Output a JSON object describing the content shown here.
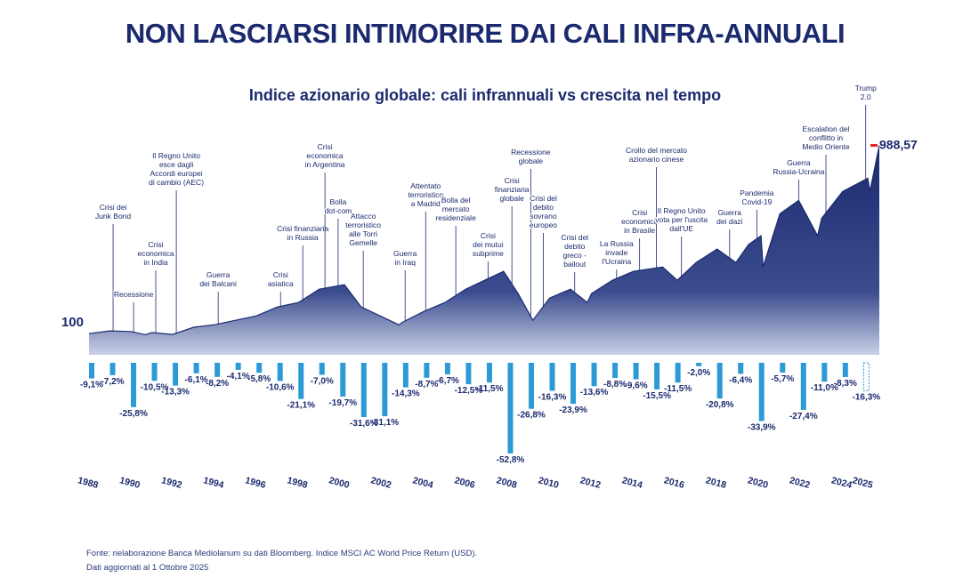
{
  "header": {
    "title": "NON LASCIARSI INTIMORIRE DAI CALI INFRA-ANNUALI"
  },
  "chart_data": [
    {
      "type": "area",
      "title": "Indice azionario globale: cali infrannuali vs crescita nel tempo",
      "color": "#1b2a6e",
      "x": [
        1988,
        1989,
        1990,
        1990.7,
        1991,
        1992,
        1993,
        1994,
        1995,
        1996,
        1997,
        1998,
        1999,
        2000.2,
        2001,
        2002.8,
        2003,
        2004,
        2005,
        2006,
        2007.8,
        2008.5,
        2009.2,
        2010,
        2011,
        2011.8,
        2012,
        2013,
        2014,
        2015.4,
        2016.1,
        2017,
        2018,
        2018.9,
        2019.5,
        2020.1,
        2020.2,
        2021,
        2021.9,
        2022.8,
        2023,
        2024,
        2025.2,
        2025.3,
        2025.75
      ],
      "values": [
        100,
        113,
        110,
        95,
        105,
        96,
        130,
        142,
        163,
        184,
        226,
        247,
        310,
        331,
        226,
        142,
        155,
        205,
        247,
        310,
        394,
        289,
        163,
        268,
        310,
        247,
        289,
        352,
        394,
        415,
        352,
        436,
        499,
        436,
        520,
        562,
        415,
        666,
        729,
        562,
        645,
        771,
        834,
        771,
        988.57
      ],
      "value_labels": [
        "100",
        null,
        null,
        null,
        null,
        null,
        null,
        null,
        null,
        null,
        null,
        null,
        null,
        null,
        null,
        null,
        null,
        null,
        null,
        null,
        null,
        null,
        null,
        null,
        null,
        null,
        null,
        null,
        null,
        null,
        null,
        null,
        null,
        null,
        null,
        null,
        null,
        null,
        null,
        null,
        null,
        null,
        null,
        null,
        "988,57"
      ],
      "end_marker_color": "#e0262b",
      "xlim": [
        1988,
        2025.75
      ],
      "ylim": [
        0,
        1100
      ],
      "xticks": [
        1988,
        1990,
        1992,
        1994,
        1996,
        1998,
        2000,
        2002,
        2004,
        2006,
        2008,
        2010,
        2012,
        2014,
        2016,
        2018,
        2020,
        2022,
        2024,
        2025
      ],
      "annotations": [
        {
          "lines": [
            "Crisi dei",
            "Junk Bond"
          ],
          "x": 1989.15
        },
        {
          "lines": [
            "Recessione"
          ],
          "x": 1990.13
        },
        {
          "lines": [
            "Crisi",
            "economica",
            "in India"
          ],
          "x": 1991.19
        },
        {
          "lines": [
            "Il Regno Unito",
            "esce dagli",
            "Accordi europei",
            "di cambio (AEC)"
          ],
          "x": 1992.17
        },
        {
          "lines": [
            "Guerra",
            "dei Balcani"
          ],
          "x": 1994.17
        },
        {
          "lines": [
            "Crisi",
            "asiatica"
          ],
          "x": 1997.15
        },
        {
          "lines": [
            "Crisi finanziaria",
            "in Russia"
          ],
          "x": 1998.21
        },
        {
          "lines": [
            "Crisi",
            "economica",
            "in Argentina"
          ],
          "x": 1999.27
        },
        {
          "lines": [
            "Bolla",
            "dot-com"
          ],
          "x": 1999.9
        },
        {
          "lines": [
            "Attacco",
            "terroristico",
            "alle Torri",
            "Gemelle"
          ],
          "x": 2001.1
        },
        {
          "lines": [
            "Guerra",
            "in Iraq"
          ],
          "x": 2003.1
        },
        {
          "lines": [
            "Attentato",
            "terroristico",
            "a Madrid"
          ],
          "x": 2004.08
        },
        {
          "lines": [
            "Bolla del",
            "mercato",
            "residenziale"
          ],
          "x": 2005.52
        },
        {
          "lines": [
            "Crisi",
            "dei mutui",
            "subprime"
          ],
          "x": 2007.06
        },
        {
          "lines": [
            "Crisi",
            "finanziaria",
            "globale"
          ],
          "x": 2008.2
        },
        {
          "lines": [
            "Recessione",
            "globale"
          ],
          "x": 2009.1
        },
        {
          "lines": [
            "Crisi del",
            "debito",
            "sovrano",
            "europeo"
          ],
          "x": 2009.7
        },
        {
          "lines": [
            "Crisi del",
            "debito",
            "greco -",
            "bailout"
          ],
          "x": 2011.2
        },
        {
          "lines": [
            "La Russia",
            "invade",
            "l'Ucraina"
          ],
          "x": 2013.2
        },
        {
          "lines": [
            "Crisi",
            "economica",
            "in Brasile"
          ],
          "x": 2014.3
        },
        {
          "lines": [
            "Crollo del mercato",
            "azionario cinese"
          ],
          "x": 2015.1
        },
        {
          "lines": [
            "Il Regno Unito",
            "vota per l'uscita",
            "dall'UE"
          ],
          "x": 2016.3
        },
        {
          "lines": [
            "Guerra",
            "dei dazi"
          ],
          "x": 2018.6
        },
        {
          "lines": [
            "Pandemia",
            "Covid-19"
          ],
          "x": 2019.9
        },
        {
          "lines": [
            "Guerra",
            "Russia-Ucraina"
          ],
          "x": 2021.9
        },
        {
          "lines": [
            "Escalation del",
            "conflitto in",
            "Medio Oriente"
          ],
          "x": 2023.2
        },
        {
          "lines": [
            "Trump",
            "2.0"
          ],
          "x": 2025.1
        }
      ]
    },
    {
      "type": "bar",
      "color": "#2b9ad6",
      "label_color": "#1b2a6e",
      "x": [
        1988,
        1989,
        1990,
        1991,
        1992,
        1993,
        1994,
        1995,
        1996,
        1997,
        1998,
        1999,
        2000,
        2001,
        2002,
        2003,
        2004,
        2005,
        2006,
        2007,
        2008,
        2009,
        2010,
        2011,
        2012,
        2013,
        2014,
        2015,
        2016,
        2017,
        2018,
        2019,
        2020,
        2021,
        2022,
        2023,
        2024,
        2025
      ],
      "values": [
        -9.1,
        -7.2,
        -25.8,
        -10.5,
        -13.3,
        -6.1,
        -8.2,
        -4.1,
        -5.8,
        -10.6,
        -21.1,
        -7.0,
        -19.7,
        -31.6,
        -31.1,
        -14.3,
        -8.7,
        -6.7,
        -12.5,
        -11.5,
        -52.8,
        -26.8,
        -16.3,
        -23.9,
        -13.6,
        -8.8,
        -9.6,
        -15.5,
        -11.5,
        -2.0,
        -20.8,
        -6.4,
        -33.9,
        -5.7,
        -27.4,
        -11.0,
        -8.3,
        -16.3
      ],
      "value_labels": [
        "-9,1%",
        "-7,2%",
        "-25,8%",
        "-10,5%",
        "-13,3%",
        "-6,1%",
        "-8,2%",
        "-4,1%",
        "-5,8%",
        "-10,6%",
        "-21,1%",
        "-7,0%",
        "-19,7%",
        "-31,6%",
        "-31,1%",
        "-14,3%",
        "-8,7%",
        "-6,7%",
        "-12,5%",
        "-11,5%",
        "-52,8%",
        "-26,8%",
        "-16,3%",
        "-23,9%",
        "-13,6%",
        "-8,8%",
        "-9,6%",
        "-15,5%",
        "-11,5%",
        "-2,0%",
        "-20,8%",
        "-6,4%",
        "-33,9%",
        "-5,7%",
        "-27,4%",
        "-11,0%",
        "-8,3%",
        "-16,3%"
      ],
      "xlim": [
        1988,
        2025.75
      ],
      "ylim": [
        -60,
        0
      ]
    }
  ],
  "footer": {
    "lines": [
      "Fonte: rielaborazione Banca Mediolanum su dati Bloomberg. Indice MSCI AC World Price Return (USD).",
      "Dati aggiornati al 1 Ottobre 2025"
    ]
  }
}
